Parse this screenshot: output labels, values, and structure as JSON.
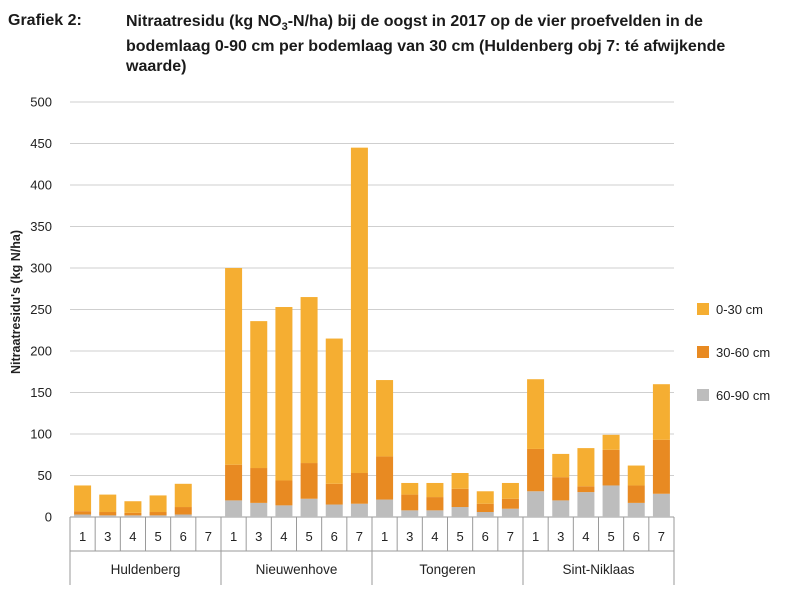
{
  "header": {
    "label": "Grafiek 2:",
    "title_part1": "Nitraatresidu (kg NO",
    "title_sub": "3",
    "title_part2": "-N/ha) bij de oogst in 2017 op de vier proefvelden in de bodemlaag 0-90 cm per bodemlaag van 30 cm (Huldenberg obj 7: té afwijkende waarde)"
  },
  "chart_data": {
    "type": "bar",
    "stacked": true,
    "ylabel": "Nitraatresidu's (kg N/ha)",
    "ylim": [
      0,
      500
    ],
    "yticks": [
      "0",
      "50",
      "100",
      "150",
      "200",
      "250",
      "300",
      "350",
      "400",
      "450",
      "500"
    ],
    "grid": true,
    "legend_position": "right",
    "groups": [
      {
        "name": "Huldenberg",
        "categories": [
          "1",
          "3",
          "4",
          "5",
          "6",
          "7"
        ]
      },
      {
        "name": "Nieuwenhove",
        "categories": [
          "1",
          "3",
          "4",
          "5",
          "6",
          "7"
        ]
      },
      {
        "name": "Tongeren",
        "categories": [
          "1",
          "3",
          "4",
          "5",
          "6",
          "7"
        ]
      },
      {
        "name": "Sint-Niklaas",
        "categories": [
          "1",
          "3",
          "4",
          "5",
          "6",
          "7"
        ]
      }
    ],
    "series": [
      {
        "name": "60-90 cm",
        "color": "#bdbdbd",
        "values": [
          3,
          2,
          2,
          2,
          3,
          0,
          20,
          17,
          14,
          22,
          15,
          16,
          21,
          8,
          8,
          12,
          6,
          10,
          31,
          20,
          30,
          38,
          17,
          28
        ]
      },
      {
        "name": "30-60 cm",
        "color": "#e88a22",
        "values": [
          4,
          4,
          3,
          4,
          9,
          0,
          43,
          42,
          30,
          43,
          25,
          37,
          52,
          19,
          16,
          22,
          10,
          12,
          51,
          28,
          7,
          43,
          21,
          65
        ]
      },
      {
        "name": "0-30 cm",
        "color": "#f5ae32",
        "values": [
          31,
          21,
          14,
          20,
          28,
          0,
          237,
          177,
          209,
          200,
          175,
          392,
          92,
          14,
          17,
          19,
          15,
          19,
          84,
          28,
          46,
          18,
          24,
          67
        ]
      }
    ],
    "legend": [
      "0-30 cm",
      "30-60 cm",
      "60-90 cm"
    ]
  }
}
